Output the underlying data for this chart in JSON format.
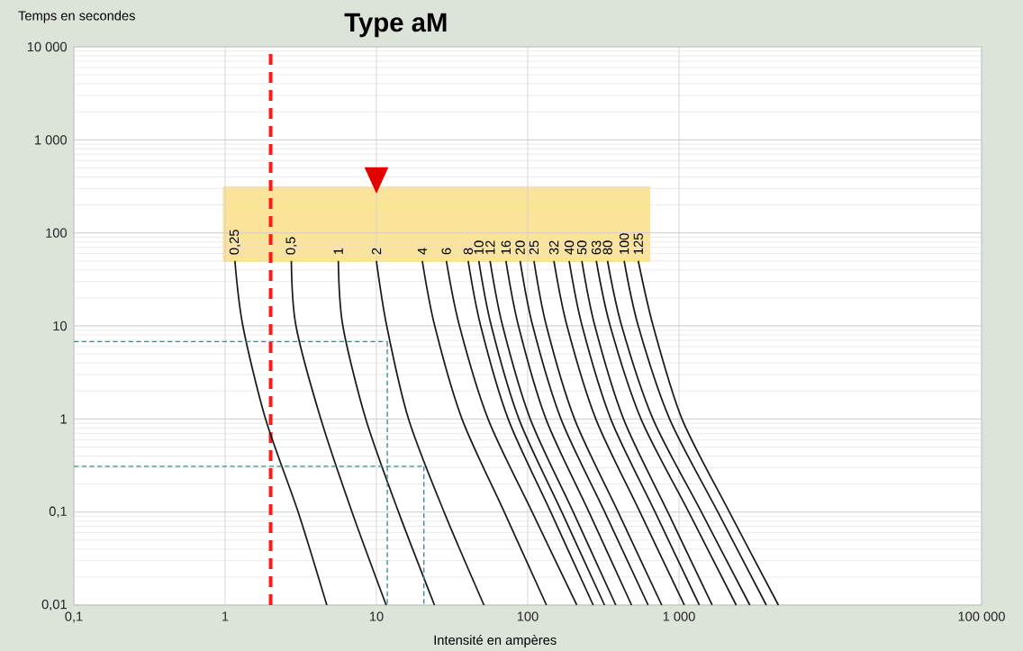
{
  "chart_data": {
    "type": "line",
    "title": "Type aM",
    "xlabel": "Intensité en ampères",
    "ylabel": "Temps en secondes",
    "log": "xy",
    "grid": true,
    "line_style": "solid",
    "marker": "none",
    "xlim": [
      0.1,
      100000
    ],
    "ylim": [
      0.01,
      10000
    ],
    "xticks": [
      {
        "value": 0.1,
        "label": "0,1"
      },
      1,
      10,
      100,
      {
        "value": 1000,
        "label": "1 000"
      },
      {
        "value": 100000,
        "label": "100 000"
      }
    ],
    "yticks": [
      {
        "value": 0.01,
        "label": "0,01"
      },
      {
        "value": 0.1,
        "label": "0,1"
      },
      1,
      10,
      100,
      {
        "value": 1000,
        "label": "1 000"
      },
      {
        "value": 10000,
        "label": "10 000"
      }
    ],
    "ref_lines": [
      {
        "axis": "x",
        "value": 2,
        "color": "#ff1a1a",
        "line_style": "dashed"
      }
    ],
    "series": [
      {
        "name": "0,25",
        "color": "#1a1a1a",
        "x": [
          1.16,
          1.31,
          1.85,
          3.04,
          4.7
        ],
        "values": [
          50,
          10,
          1,
          0.1,
          0.01
        ]
      },
      {
        "name": "0,5",
        "color": "#1a1a1a",
        "x": [
          2.74,
          2.94,
          4.29,
          6.9,
          11.6
        ],
        "values": [
          50,
          10,
          1,
          0.1,
          0.01
        ]
      },
      {
        "name": "1",
        "color": "#1a1a1a",
        "x": [
          5.6,
          6.0,
          8.5,
          14,
          24.2
        ],
        "values": [
          50,
          10,
          1,
          0.1,
          0.01
        ]
      },
      {
        "name": "2",
        "color": "#1a1a1a",
        "x": [
          10.0,
          11.7,
          16.3,
          28,
          51.4
        ],
        "values": [
          50,
          10,
          1,
          0.1,
          0.01
        ]
      },
      {
        "name": "4",
        "color": "#1a1a1a",
        "x": [
          20.1,
          24.3,
          36.8,
          70,
          133
        ],
        "values": [
          50,
          10,
          1,
          0.1,
          0.01
        ]
      },
      {
        "name": "6",
        "color": "#1a1a1a",
        "x": [
          29,
          35.4,
          54.7,
          107,
          211
        ],
        "values": [
          50,
          10,
          1,
          0.1,
          0.01
        ]
      },
      {
        "name": "8",
        "color": "#1a1a1a",
        "x": [
          40.4,
          48.9,
          74.3,
          142,
          271
        ],
        "values": [
          50,
          10,
          1,
          0.1,
          0.01
        ]
      },
      {
        "name": "10",
        "color": "#1a1a1a",
        "x": [
          47.5,
          57.5,
          87.5,
          168,
          322
        ],
        "values": [
          50,
          10,
          1,
          0.1,
          0.01
        ]
      },
      {
        "name": "12",
        "color": "#1a1a1a",
        "x": [
          56.4,
          68.3,
          104,
          200,
          382
        ],
        "values": [
          50,
          10,
          1,
          0.1,
          0.01
        ]
      },
      {
        "name": "16",
        "color": "#1a1a1a",
        "x": [
          71.8,
          86.9,
          132,
          254,
          486
        ],
        "values": [
          50,
          10,
          1,
          0.1,
          0.01
        ]
      },
      {
        "name": "20",
        "color": "#1a1a1a",
        "x": [
          89.1,
          108,
          166,
          323,
          625
        ],
        "values": [
          50,
          10,
          1,
          0.1,
          0.01
        ]
      },
      {
        "name": "25",
        "color": "#1a1a1a",
        "x": [
          110,
          133,
          204,
          396,
          769
        ],
        "values": [
          50,
          10,
          1,
          0.1,
          0.01
        ]
      },
      {
        "name": "32",
        "color": "#1a1a1a",
        "x": [
          149,
          182,
          282,
          552,
          1084
        ],
        "values": [
          50,
          10,
          1,
          0.1,
          0.01
        ]
      },
      {
        "name": "40",
        "color": "#1a1a1a",
        "x": [
          188,
          229,
          354,
          695,
          1362
        ],
        "values": [
          50,
          10,
          1,
          0.1,
          0.01
        ]
      },
      {
        "name": "50",
        "color": "#1a1a1a",
        "x": [
          228,
          278,
          430,
          843,
          1656
        ],
        "values": [
          50,
          10,
          1,
          0.1,
          0.01
        ]
      },
      {
        "name": "63",
        "color": "#1a1a1a",
        "x": [
          284,
          351,
          561,
          1159,
          2388
        ],
        "values": [
          50,
          10,
          1,
          0.1,
          0.01
        ]
      },
      {
        "name": "80",
        "color": "#1a1a1a",
        "x": [
          337,
          418,
          673,
          1406,
          2938
        ],
        "values": [
          50,
          10,
          1,
          0.1,
          0.01
        ]
      },
      {
        "name": "100",
        "color": "#1a1a1a",
        "x": [
          434,
          538,
          867,
          1807,
          3776
        ],
        "values": [
          50,
          10,
          1,
          0.1,
          0.01
        ]
      },
      {
        "name": "125",
        "color": "#1a1a1a",
        "x": [
          538,
          675,
          1047,
          2153,
          4539
        ],
        "values": [
          50,
          10,
          1,
          0.1,
          0.01
        ]
      },
      {
        "color": "#3d8a8c",
        "line_style": "dashed",
        "x": [
          0.1,
          11.8
        ],
        "values": [
          6.8,
          6.8
        ]
      },
      {
        "color": "#3d8a8c",
        "line_style": "dashed",
        "x": [
          11.8,
          11.8
        ],
        "values": [
          6.8,
          0.01
        ]
      },
      {
        "color": "#3d8a8c",
        "line_style": "dashed",
        "x": [
          0.1,
          20.6
        ],
        "values": [
          0.31,
          0.31
        ]
      },
      {
        "color": "#3d8a8c",
        "line_style": "dashed",
        "x": [
          20.6,
          20.6
        ],
        "values": [
          0.31,
          0.01
        ]
      }
    ]
  }
}
